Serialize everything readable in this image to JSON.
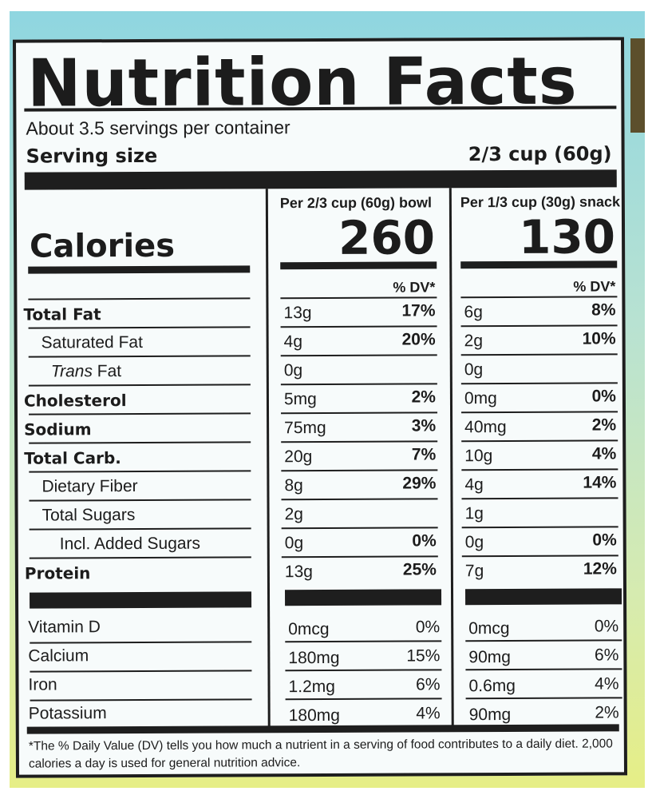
{
  "title": "Nutrition Facts",
  "servings_per_container": "About 3.5 servings per container",
  "serving_size_label": "Serving size",
  "serving_size_value": "2/3 cup (60g)",
  "calories_label": "Calories",
  "columns": [
    {
      "header": "Per 2/3 cup (60g) bowl",
      "calories": "260",
      "dv_header": "% DV*"
    },
    {
      "header": "Per 1/3 cup (30g) snack",
      "calories": "130",
      "dv_header": "% DV*"
    }
  ],
  "nutrients": [
    {
      "name": "Total Fat",
      "bold": true,
      "indent": 0,
      "c1_amount": "13g",
      "c1_dv": "17%",
      "c2_amount": "6g",
      "c2_dv": "8%"
    },
    {
      "name": "Saturated Fat",
      "bold": false,
      "indent": 1,
      "c1_amount": "4g",
      "c1_dv": "20%",
      "c2_amount": "2g",
      "c2_dv": "10%"
    },
    {
      "name_italic": "Trans",
      "name": "Fat",
      "bold": false,
      "indent": 2,
      "c1_amount": "0g",
      "c1_dv": "",
      "c2_amount": "0g",
      "c2_dv": ""
    },
    {
      "name": "Cholesterol",
      "bold": true,
      "indent": 0,
      "c1_amount": "5mg",
      "c1_dv": "2%",
      "c2_amount": "0mg",
      "c2_dv": "0%"
    },
    {
      "name": "Sodium",
      "bold": true,
      "indent": 0,
      "c1_amount": "75mg",
      "c1_dv": "3%",
      "c2_amount": "40mg",
      "c2_dv": "2%"
    },
    {
      "name": "Total Carb.",
      "bold": true,
      "indent": 0,
      "c1_amount": "20g",
      "c1_dv": "7%",
      "c2_amount": "10g",
      "c2_dv": "4%"
    },
    {
      "name": "Dietary Fiber",
      "bold": false,
      "indent": 1,
      "c1_amount": "8g",
      "c1_dv": "29%",
      "c2_amount": "4g",
      "c2_dv": "14%"
    },
    {
      "name": "Total Sugars",
      "bold": false,
      "indent": 1,
      "c1_amount": "2g",
      "c1_dv": "",
      "c2_amount": "1g",
      "c2_dv": ""
    },
    {
      "name": "Incl. Added Sugars",
      "bold": false,
      "indent": 3,
      "c1_amount": "0g",
      "c1_dv": "0%",
      "c2_amount": "0g",
      "c2_dv": "0%"
    },
    {
      "name": "Protein",
      "bold": true,
      "indent": 0,
      "c1_amount": "13g",
      "c1_dv": "25%",
      "c2_amount": "7g",
      "c2_dv": "12%"
    }
  ],
  "vitamins": [
    {
      "name": "Vitamin D",
      "c1_amount": "0mcg",
      "c1_dv": "0%",
      "c2_amount": "0mcg",
      "c2_dv": "0%"
    },
    {
      "name": "Calcium",
      "c1_amount": "180mg",
      "c1_dv": "15%",
      "c2_amount": "90mg",
      "c2_dv": "6%"
    },
    {
      "name": "Iron",
      "c1_amount": "1.2mg",
      "c1_dv": "6%",
      "c2_amount": "0.6mg",
      "c2_dv": "4%"
    },
    {
      "name": "Potassium",
      "c1_amount": "180mg",
      "c1_dv": "4%",
      "c2_amount": "90mg",
      "c2_dv": "2%"
    }
  ],
  "footnote": "*The % Daily Value (DV) tells you how much a nutrient in a serving of food contributes to a daily diet. 2,000 calories a day is used for general nutrition advice."
}
